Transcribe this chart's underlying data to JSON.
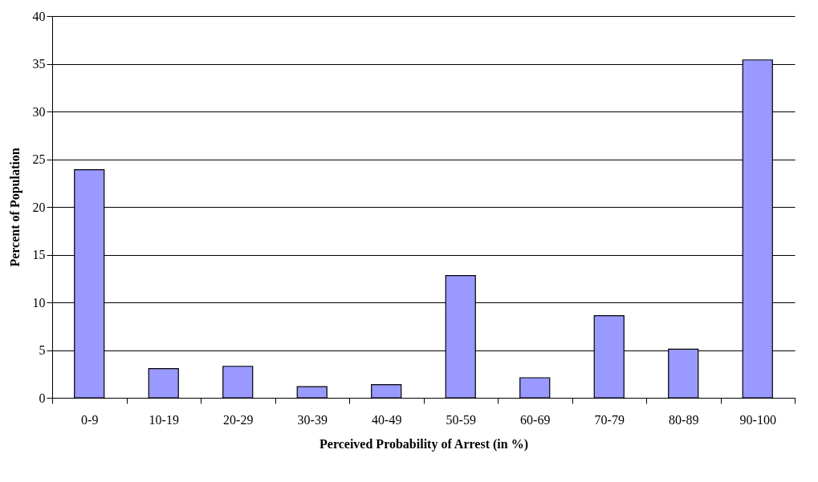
{
  "chart_data": {
    "type": "bar",
    "xlabel": "Perceived Probability of Arrest (in %)",
    "ylabel": "Percent of Population",
    "categories": [
      "0-9",
      "10-19",
      "20-29",
      "30-39",
      "40-49",
      "50-59",
      "60-69",
      "70-79",
      "80-89",
      "90-100"
    ],
    "values": [
      23.9,
      3.05,
      3.3,
      1.16,
      1.38,
      12.8,
      2.1,
      8.6,
      5.1,
      35.4
    ],
    "color": "#9999ff",
    "ylim": [
      0,
      40
    ],
    "yticks": [
      0,
      5,
      10,
      15,
      20,
      25,
      30,
      35,
      40
    ],
    "grid": "y"
  }
}
